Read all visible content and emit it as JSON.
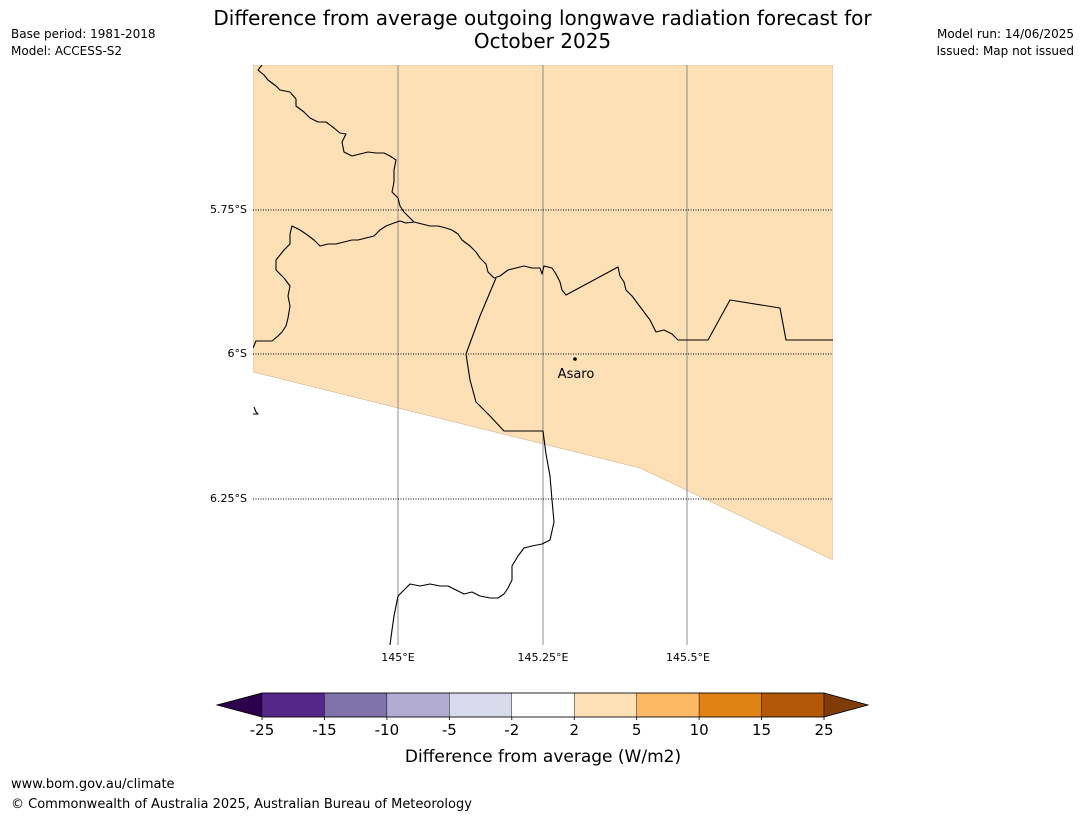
{
  "title": {
    "line1": "Difference from average outgoing longwave radiation forecast for",
    "line2": "October 2025"
  },
  "meta_left": {
    "base_period": "Base period: 1981-2018",
    "model": "Model: ACCESS-S2"
  },
  "meta_right": {
    "model_run": "Model run: 14/06/2025",
    "issued": "Issued: Map not issued"
  },
  "map": {
    "lat_labels": [
      "5.75°S",
      "6°S",
      "6.25°S"
    ],
    "lon_labels": [
      "145°E",
      "145.25°E",
      "145.5°E"
    ],
    "place_label": "Asaro",
    "fill_category": "2 to 5",
    "fill_color": "#fde0b6"
  },
  "colorbar": {
    "label": "Difference from average (W/m2)",
    "ticks": [
      "-25",
      "-15",
      "-10",
      "-5",
      "-2",
      "2",
      "5",
      "10",
      "15",
      "25"
    ],
    "colors": [
      "#2d004b",
      "#542788",
      "#8073ac",
      "#b2abd2",
      "#d8daeb",
      "#ffffff",
      "#fde0b6",
      "#fdb863",
      "#e08214",
      "#b35806",
      "#7f3b08"
    ]
  },
  "footer": {
    "url": "www.bom.gov.au/climate",
    "copyright": "© Commonwealth of Australia 2025, Australian Bureau of Meteorology"
  }
}
